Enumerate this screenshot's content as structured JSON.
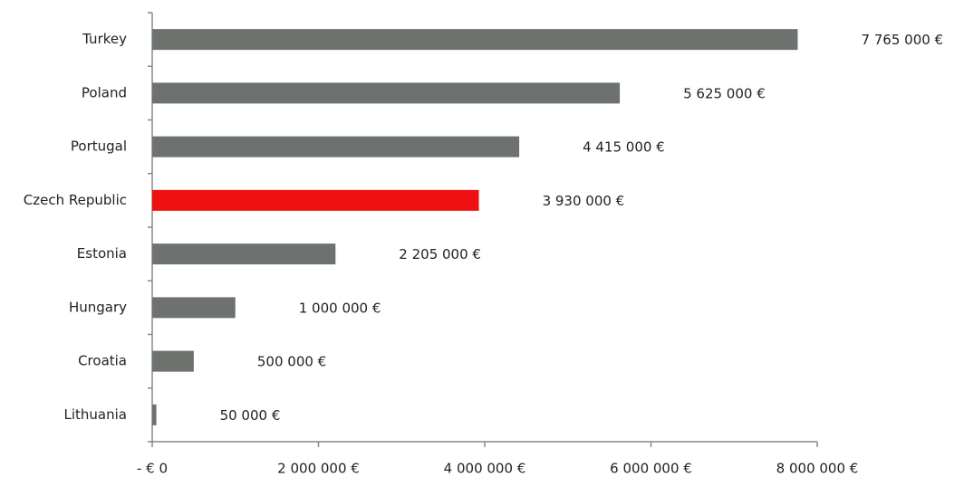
{
  "chart_data": {
    "type": "hbar",
    "categories": [
      "Turkey",
      "Poland",
      "Portugal",
      "Czech Republic",
      "Estonia",
      "Hungary",
      "Croatia",
      "Lithuania"
    ],
    "values": [
      7765000,
      5625000,
      4415000,
      3930000,
      2205000,
      1000000,
      500000,
      50000
    ],
    "value_labels": [
      "7 765 000 €",
      "5 625 000 €",
      "4 415 000 €",
      "3 930 000 €",
      "2 205 000 €",
      "1 000 000 €",
      "500 000 €",
      "50 000 €"
    ],
    "colors": [
      "#6e726f",
      "#6e726f",
      "#6e726f",
      "#ee1111",
      "#6e726f",
      "#6e726f",
      "#6e726f",
      "#6e726f"
    ],
    "xlim": [
      0,
      8000000
    ],
    "xticks": [
      {
        "value": 0,
        "label": "- € 0"
      },
      {
        "value": 2000000,
        "label": "2 000 000 €"
      },
      {
        "value": 4000000,
        "label": "4 000 000 €"
      },
      {
        "value": 6000000,
        "label": "6 000 000 €"
      },
      {
        "value": 8000000,
        "label": "8 000 000 €"
      }
    ],
    "grid": false
  }
}
